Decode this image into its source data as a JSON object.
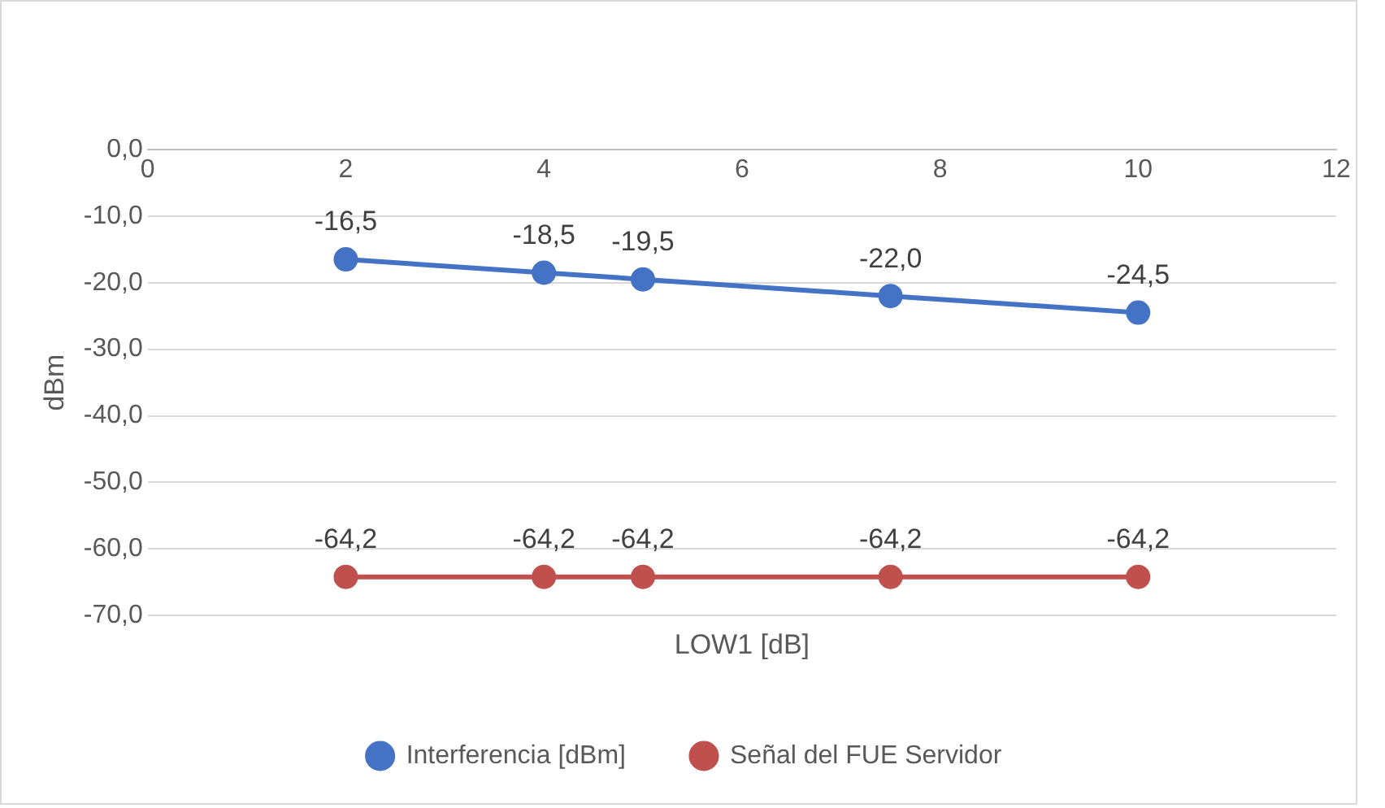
{
  "chart_data": {
    "type": "line",
    "xlabel": "LOW1 [dB]",
    "ylabel": "dBm",
    "x": [
      2,
      4,
      5,
      7.5,
      10
    ],
    "series": [
      {
        "name": "Interferencia [dBm]",
        "color": "#4472c4",
        "values": [
          -16.5,
          -18.5,
          -19.5,
          -22,
          -24.5
        ],
        "value_labels": [
          "-16,5",
          "-18,5",
          "-19,5",
          "-22,0",
          "-24,5"
        ]
      },
      {
        "name": "Señal del FUE Servidor",
        "color": "#c0504d",
        "values": [
          -64.2,
          -64.2,
          -64.2,
          -64.2,
          -64.2
        ],
        "value_labels": [
          "-64,2",
          "-64,2",
          "-64,2",
          "-64,2",
          "-64,2"
        ]
      }
    ],
    "xlim": [
      0,
      12
    ],
    "xticks": [
      0,
      2,
      4,
      6,
      8,
      10,
      12
    ],
    "ylim": [
      -70,
      0
    ],
    "yticks": [
      {
        "value": 0,
        "label": "0,0"
      },
      {
        "value": -10,
        "label": "-10,0"
      },
      {
        "value": -20,
        "label": "-20,0"
      },
      {
        "value": -30,
        "label": "-30,0"
      },
      {
        "value": -40,
        "label": "-40,0"
      },
      {
        "value": -50,
        "label": "-50,0"
      },
      {
        "value": -60,
        "label": "-60,0"
      },
      {
        "value": -70,
        "label": "-70,0"
      }
    ],
    "grid": "y",
    "legend": "bottom",
    "marker": "circle",
    "line_style": "solid"
  }
}
